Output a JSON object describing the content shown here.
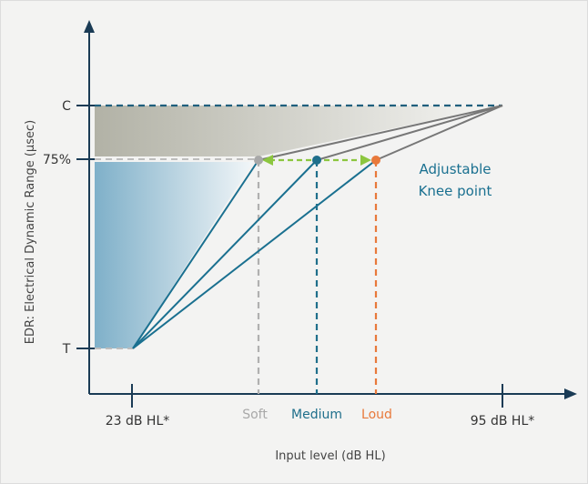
{
  "y_axis": {
    "title": "EDR: Electrical Dynamic Range (µsec)",
    "tick_c": "C",
    "tick_75": "75%",
    "tick_t": "T"
  },
  "x_axis": {
    "title": "Input level (dB HL)",
    "tick_min": "23 dB HL*",
    "tick_max": "95 dB HL*",
    "soft": "Soft",
    "medium": "Medium",
    "loud": "Loud"
  },
  "annotation": {
    "line1": "Adjustable",
    "line2": "Knee point"
  },
  "colors": {
    "soft": "#a8a8a8",
    "medium": "#1f6f8b",
    "loud": "#e8793b",
    "arrow": "#8cc63f",
    "teal_line": "#1a7090",
    "grey_line": "#777777"
  }
}
